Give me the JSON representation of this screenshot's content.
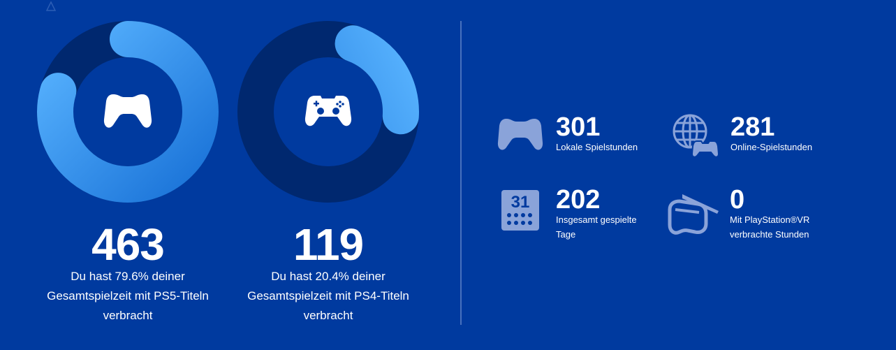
{
  "colors": {
    "background": "#003a9f",
    "ring_track": "#00286f",
    "ring_gradient_start": "#1a73d8",
    "ring_gradient_end": "#58b3ff",
    "icon_muted": "#8aa3d9"
  },
  "play_time": [
    {
      "platform_icon": "ps5-controller-icon",
      "share_percent": 79.6,
      "hours": "463",
      "description": "Du hast 79.6% deiner Gesamtspielzeit mit PS5-Titeln verbracht"
    },
    {
      "platform_icon": "ps4-controller-icon",
      "share_percent": 20.4,
      "hours": "119",
      "description": "Du hast 20.4% deiner Gesamtspielzeit mit PS4-Titeln verbracht"
    }
  ],
  "stats": {
    "local": {
      "icon": "controller-icon",
      "value": "301",
      "label": "Lokale Spielstunden"
    },
    "online": {
      "icon": "globe-controller-icon",
      "value": "281",
      "label": "Online-Spielstunden"
    },
    "days": {
      "icon": "calendar-icon",
      "calendar_number": "31",
      "value": "202",
      "label": "Insgesamt gespielte Tage"
    },
    "vr": {
      "icon": "vr-headset-icon",
      "value": "0",
      "label": "Mit PlayStation®VR verbrachte Stunden"
    }
  }
}
